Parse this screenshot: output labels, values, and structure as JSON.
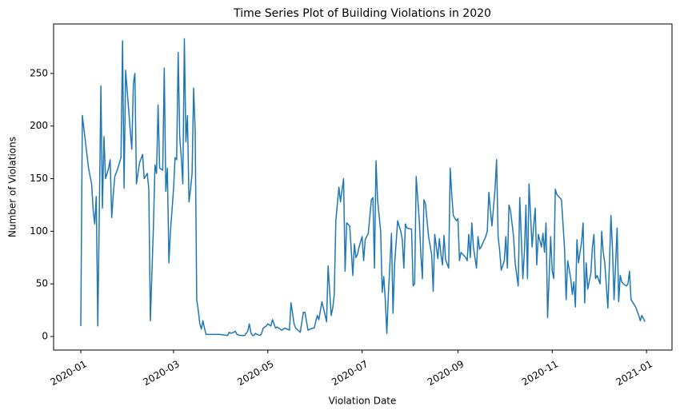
{
  "chart_data": {
    "type": "line",
    "title": "Time Series Plot of Building Violations in 2020",
    "xlabel": "Violation Date",
    "ylabel": "Number of Violations",
    "color": "#1f77b4",
    "x": [
      0,
      1,
      3,
      5,
      7,
      8,
      9,
      10,
      11,
      12,
      13,
      14,
      15,
      16,
      18,
      19,
      20,
      21,
      22,
      24,
      26,
      27,
      28,
      29,
      31,
      32,
      33,
      34,
      35,
      36,
      37,
      38,
      40,
      41,
      43,
      44,
      45,
      46,
      47,
      48,
      49,
      50,
      51,
      53,
      54,
      55,
      56,
      57,
      58,
      60,
      61,
      62,
      63,
      64,
      65,
      66,
      67,
      68,
      69,
      70,
      71,
      72,
      73,
      74,
      75,
      76,
      77,
      78,
      79,
      80,
      81,
      85,
      90,
      95,
      96,
      97,
      99,
      100,
      101,
      103,
      106,
      108,
      109,
      110,
      111,
      112,
      113,
      114,
      116,
      117,
      118,
      120,
      121,
      123,
      124,
      126,
      127,
      129,
      130,
      132,
      135,
      136,
      138,
      139,
      142,
      144,
      145,
      147,
      150,
      151,
      153,
      154,
      156,
      157,
      159,
      160,
      162,
      163,
      164,
      165,
      167,
      168,
      170,
      171,
      172,
      174,
      176,
      177,
      178,
      179,
      180,
      182,
      183,
      184,
      186,
      188,
      189,
      190,
      191,
      192,
      194,
      195,
      196,
      197,
      198,
      199,
      201,
      202,
      203,
      205,
      207,
      208,
      209,
      210,
      211,
      214,
      215,
      216,
      217,
      219,
      220,
      221,
      222,
      223,
      225,
      227,
      228,
      229,
      231,
      232,
      233,
      234,
      235,
      236,
      238,
      239,
      240,
      241,
      243,
      244,
      245,
      246,
      249,
      250,
      251,
      252,
      253,
      254,
      256,
      257,
      258,
      259,
      262,
      263,
      264,
      265,
      266,
      268,
      269,
      270,
      271,
      272,
      274,
      275,
      276,
      277,
      278,
      280,
      281,
      283,
      284,
      286,
      287,
      288,
      289,
      290,
      292,
      293,
      294,
      295,
      296,
      298,
      299,
      300,
      301,
      302,
      304,
      305,
      306,
      307,
      308,
      311,
      313,
      314,
      315,
      317,
      318,
      319,
      320,
      321,
      322,
      324,
      325,
      326,
      327,
      328,
      330,
      331,
      332,
      333,
      334,
      336,
      337,
      338,
      339,
      341,
      342,
      343,
      344,
      345,
      347,
      348,
      349,
      350,
      351,
      353,
      354,
      355,
      356,
      359,
      361,
      362,
      363,
      365
    ],
    "values": [
      10,
      210,
      185,
      160,
      145,
      120,
      107,
      133,
      10,
      120,
      238,
      122,
      190,
      150,
      160,
      168,
      113,
      135,
      152,
      160,
      170,
      281,
      141,
      253,
      215,
      195,
      178,
      240,
      250,
      145,
      155,
      165,
      173,
      150,
      155,
      140,
      15,
      60,
      105,
      163,
      155,
      220,
      160,
      158,
      255,
      138,
      160,
      70,
      100,
      140,
      170,
      168,
      270,
      190,
      170,
      145,
      283,
      185,
      210,
      128,
      140,
      155,
      236,
      195,
      35,
      25,
      12,
      7,
      15,
      8,
      2,
      2,
      2,
      1,
      4,
      3,
      4,
      5,
      2,
      1,
      1,
      5,
      12,
      4,
      1,
      1,
      3,
      2,
      1,
      3,
      8,
      10,
      12,
      10,
      16,
      8,
      9,
      7,
      6,
      8,
      6,
      32,
      12,
      8,
      4,
      23,
      23,
      6,
      8,
      8,
      20,
      16,
      33,
      27,
      14,
      67,
      20,
      27,
      40,
      110,
      142,
      128,
      150,
      62,
      108,
      105,
      58,
      88,
      75,
      78,
      85,
      95,
      72,
      92,
      98,
      130,
      132,
      65,
      167,
      130,
      100,
      42,
      57,
      35,
      3,
      40,
      98,
      22,
      68,
      110,
      100,
      92,
      65,
      107,
      103,
      102,
      48,
      50,
      152,
      110,
      78,
      55,
      130,
      126,
      95,
      78,
      43,
      97,
      74,
      93,
      78,
      68,
      96,
      73,
      65,
      160,
      135,
      115,
      110,
      112,
      72,
      80,
      75,
      72,
      97,
      75,
      108,
      85,
      65,
      95,
      83,
      85,
      95,
      100,
      137,
      120,
      105,
      140,
      168,
      95,
      82,
      63,
      72,
      95,
      65,
      125,
      120,
      95,
      70,
      48,
      132,
      55,
      80,
      125,
      55,
      145,
      85,
      105,
      122,
      68,
      97,
      85,
      98,
      80,
      108,
      18,
      95,
      62,
      55,
      140,
      135,
      130,
      83,
      35,
      72,
      55,
      40,
      52,
      28,
      92,
      70,
      90,
      108,
      32,
      70,
      45,
      60,
      85,
      97,
      55,
      58,
      50,
      100,
      80,
      70,
      27,
      68,
      115,
      83,
      35,
      103,
      33,
      58,
      52,
      50,
      48,
      50,
      62,
      35,
      28,
      20,
      15,
      20,
      14
    ],
    "xlim": [
      -17.6,
      382.5
    ],
    "ylim": [
      -12.9,
      297
    ],
    "xticks": [
      {
        "value": 0,
        "label": "2020-01"
      },
      {
        "value": 60,
        "label": "2020-03"
      },
      {
        "value": 121,
        "label": "2020-05"
      },
      {
        "value": 182,
        "label": "2020-07"
      },
      {
        "value": 244,
        "label": "2020-09"
      },
      {
        "value": 305,
        "label": "2020-11"
      },
      {
        "value": 366,
        "label": "2021-01"
      }
    ],
    "yticks": [
      0,
      50,
      100,
      150,
      200,
      250
    ],
    "grid": false
  }
}
